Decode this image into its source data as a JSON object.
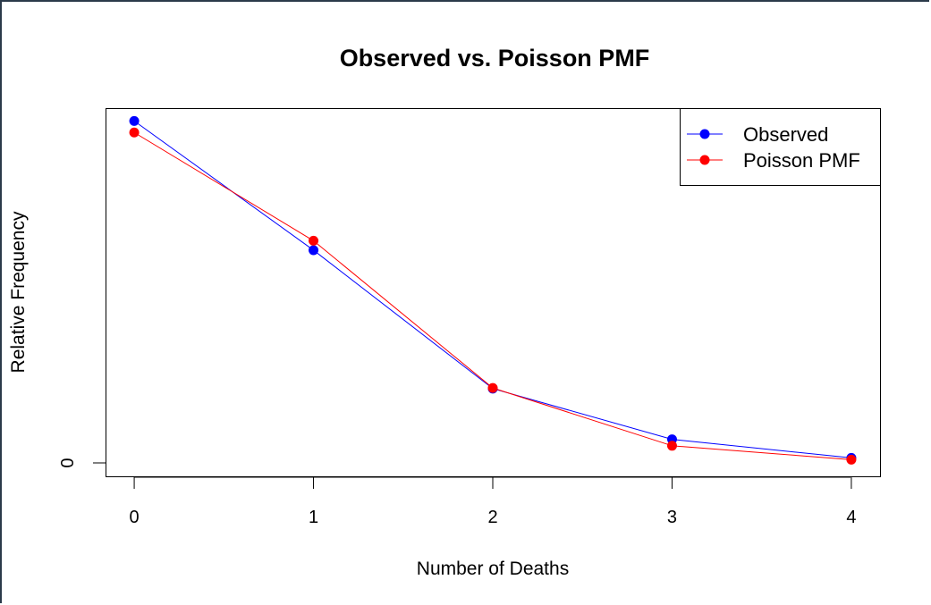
{
  "chart_data": {
    "type": "line",
    "title": "Observed vs. Poisson PMF",
    "xlabel": "Number of Deaths",
    "ylabel": "Relative Frequency",
    "x": [
      0,
      1,
      2,
      3,
      4
    ],
    "x_tick_labels": [
      "0",
      "1",
      "2",
      "3",
      "4"
    ],
    "y_tick_labels": [
      "0"
    ],
    "y_ticks": [
      0
    ],
    "xlim": [
      -0.16,
      4.16
    ],
    "ylim": [
      -0.0215,
      0.5485
    ],
    "series": [
      {
        "name": "Observed",
        "color": "#0000ff",
        "values": [
          0.5286,
          0.3286,
          0.1143,
          0.0357,
          0.0071
        ]
      },
      {
        "name": "Poisson PMF",
        "color": "#ff0000",
        "values": [
          0.5108,
          0.3432,
          0.1153,
          0.0258,
          0.0043
        ]
      }
    ],
    "legend_position": "top-right",
    "grid": false
  }
}
